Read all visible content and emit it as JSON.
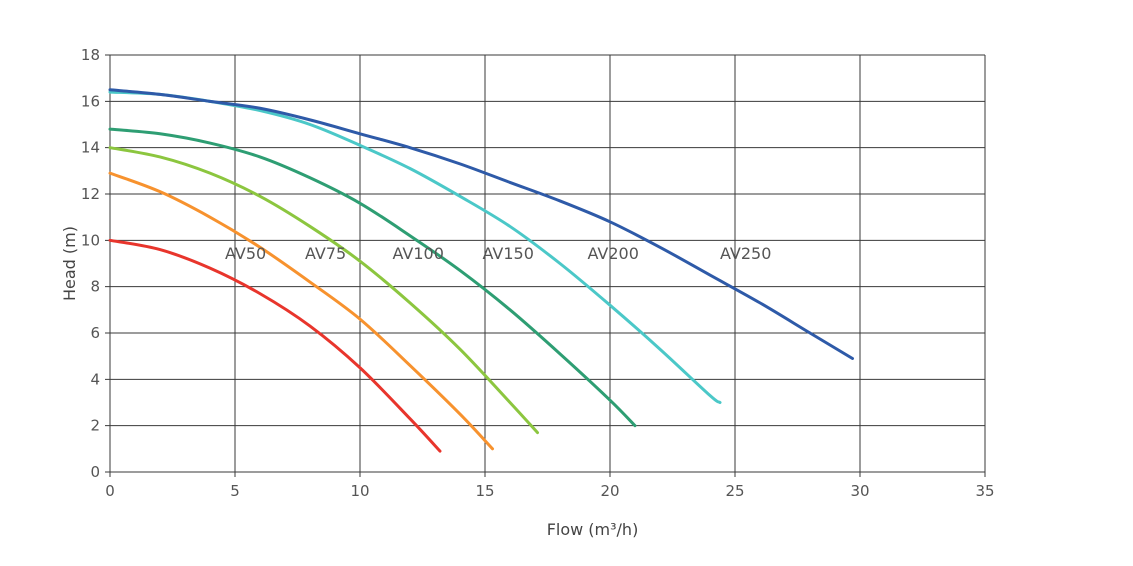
{
  "chart_data": {
    "type": "line",
    "xlabel": "Flow (m³/h)",
    "ylabel": "Head (m)",
    "xlim": [
      0,
      35
    ],
    "ylim": [
      0,
      18
    ],
    "xticks": [
      0,
      5,
      10,
      15,
      20,
      25,
      30,
      35
    ],
    "yticks": [
      0,
      2,
      4,
      6,
      8,
      10,
      12,
      14,
      16,
      18
    ],
    "grid": true,
    "legend": "none",
    "series": [
      {
        "name": "AV50",
        "color": "#e8352c",
        "label_at": [
          4.6,
          9.2
        ],
        "x": [
          0,
          2,
          4,
          6,
          8,
          10,
          12,
          13.2
        ],
        "y": [
          10.0,
          9.6,
          8.8,
          7.7,
          6.3,
          4.5,
          2.3,
          0.9
        ]
      },
      {
        "name": "AV75",
        "color": "#f7922e",
        "label_at": [
          7.8,
          9.2
        ],
        "x": [
          0,
          2,
          4,
          6,
          8,
          10,
          12,
          14,
          15.3
        ],
        "y": [
          12.9,
          12.1,
          11.0,
          9.7,
          8.2,
          6.6,
          4.6,
          2.5,
          1.0
        ]
      },
      {
        "name": "AV100",
        "color": "#8cc63f",
        "label_at": [
          11.3,
          9.2
        ],
        "x": [
          0,
          2,
          4,
          6,
          8,
          10,
          12,
          14,
          16,
          17.1
        ],
        "y": [
          14.0,
          13.6,
          12.9,
          11.9,
          10.6,
          9.1,
          7.3,
          5.3,
          3.0,
          1.7
        ]
      },
      {
        "name": "AV150",
        "color": "#2e9e73",
        "label_at": [
          14.9,
          9.2
        ],
        "x": [
          0,
          2,
          4,
          6,
          8,
          10,
          12,
          14,
          16,
          18,
          20,
          21
        ],
        "y": [
          14.8,
          14.6,
          14.2,
          13.6,
          12.7,
          11.6,
          10.2,
          8.7,
          7.0,
          5.1,
          3.1,
          2.0
        ]
      },
      {
        "name": "AV200",
        "color": "#4bc8c8",
        "label_at": [
          19.1,
          9.2
        ],
        "x": [
          0,
          2,
          4,
          6,
          8,
          10,
          12,
          14,
          16,
          18,
          20,
          22,
          24,
          24.4
        ],
        "y": [
          16.4,
          16.3,
          16.0,
          15.6,
          15.0,
          14.1,
          13.1,
          11.9,
          10.6,
          9.0,
          7.2,
          5.3,
          3.3,
          3.0
        ]
      },
      {
        "name": "AV250",
        "color": "#2e5aa8",
        "label_at": [
          24.4,
          9.2
        ],
        "x": [
          0,
          2,
          4,
          6,
          8,
          10,
          12,
          14,
          16,
          18,
          20,
          22,
          24,
          26,
          28,
          29.7
        ],
        "y": [
          16.5,
          16.3,
          16.0,
          15.7,
          15.2,
          14.6,
          14.0,
          13.3,
          12.5,
          11.7,
          10.8,
          9.7,
          8.5,
          7.3,
          6.0,
          4.9
        ]
      }
    ]
  }
}
